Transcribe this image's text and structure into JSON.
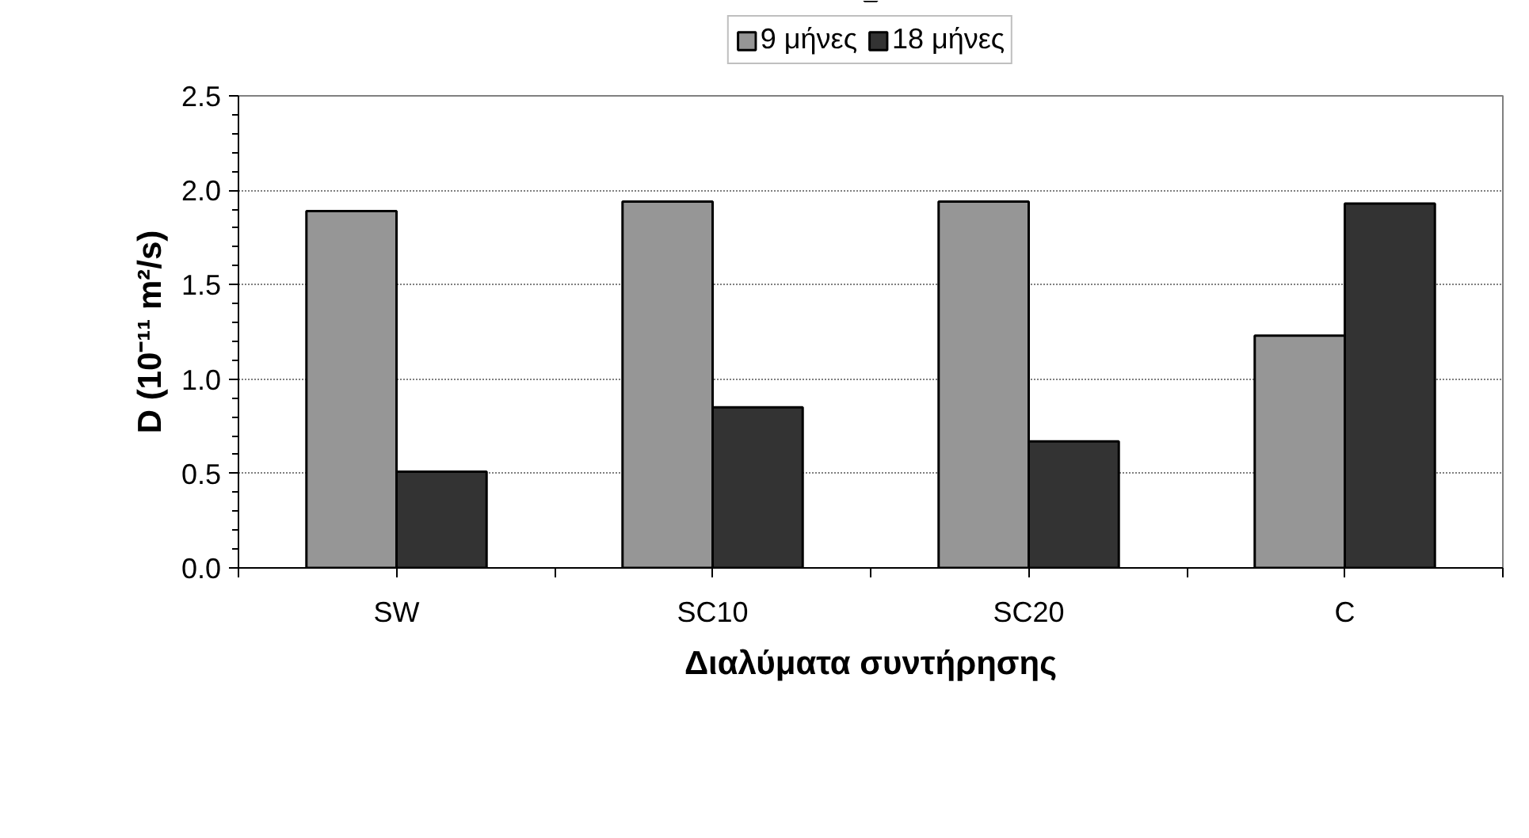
{
  "chart_data": {
    "type": "bar",
    "xlabel": "Διαλύματα συντήρησης",
    "ylabel": "D (10⁻¹¹ m²/s)",
    "categories": [
      "SW",
      "SC10",
      "SC20",
      "C"
    ],
    "series": [
      {
        "name": "9 μήνες",
        "color": "#969696",
        "values": [
          1.89,
          1.94,
          1.94,
          1.23
        ]
      },
      {
        "name": "18 μήνες",
        "color": "#333333",
        "values": [
          0.51,
          0.85,
          0.67,
          1.93
        ]
      }
    ],
    "ylim": [
      0,
      2.5
    ],
    "yticks": [
      {
        "value": 0,
        "label": "0.0"
      },
      {
        "value": 0.5,
        "label": "0.5"
      },
      {
        "value": 1,
        "label": "1.0"
      },
      {
        "value": 1.5,
        "label": "1.5"
      },
      {
        "value": 2,
        "label": "2.0"
      },
      {
        "value": 2.5,
        "label": "2.5"
      }
    ],
    "grid": "y",
    "legend": "top"
  }
}
